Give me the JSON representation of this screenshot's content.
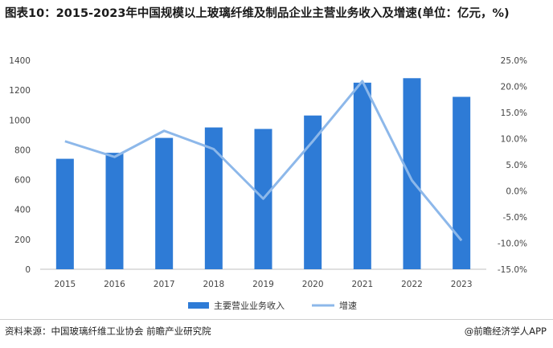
{
  "title": "图表10：2015-2023年中国规模以上玻璃纤维及制品企业主营业务收入及增速(单位：亿元，%)",
  "source": "资料来源：中国玻璃纤维工业协会 前瞻产业研究院",
  "credit": "@前瞻经济学人APP",
  "colors": {
    "bar": "#2e7bd6",
    "line": "#8db8ea"
  },
  "chart_data": {
    "type": "bar",
    "categories": [
      "2015",
      "2016",
      "2017",
      "2018",
      "2019",
      "2020",
      "2021",
      "2022",
      "2023"
    ],
    "series": [
      {
        "name": "主要营业业务收入",
        "type": "bar",
        "axis": "left",
        "values": [
          740,
          780,
          880,
          950,
          940,
          1030,
          1250,
          1280,
          1155
        ]
      },
      {
        "name": "增速",
        "type": "line",
        "axis": "right",
        "values": [
          9.5,
          6.5,
          11.5,
          8.0,
          -1.5,
          9.5,
          21.0,
          2.0,
          -9.5
        ]
      }
    ],
    "y_left": {
      "min": 0,
      "max": 1400,
      "ticks": [
        "0",
        "200",
        "400",
        "600",
        "800",
        "1000",
        "1200",
        "1400"
      ]
    },
    "y_right": {
      "min": -15,
      "max": 25,
      "ticks": [
        "-15.0%",
        "-10.0%",
        "-5.0%",
        "0.0%",
        "5.0%",
        "10.0%",
        "15.0%",
        "20.0%",
        "25.0%"
      ]
    },
    "legend_position": "bottom",
    "grid": false
  }
}
